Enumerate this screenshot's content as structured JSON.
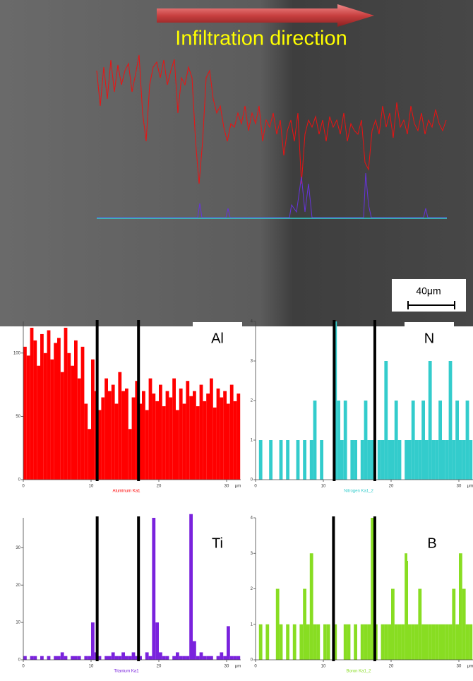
{
  "image": {
    "title": "Infiltration direction",
    "scale_bar": "40μm"
  },
  "chart_data": [
    {
      "type": "bar",
      "label": "Al",
      "x_label": "μm",
      "series": [
        {
          "name": "Aluminum Ka1",
          "color": "#ff0000",
          "values": [
            105,
            98,
            120,
            110,
            90,
            115,
            100,
            118,
            95,
            108,
            112,
            85,
            120,
            100,
            90,
            110,
            80,
            105,
            60,
            40,
            95,
            70,
            55,
            65,
            80,
            70,
            75,
            60,
            85,
            70,
            72,
            40,
            65,
            78,
            60,
            70,
            55,
            80,
            68,
            62,
            75,
            58,
            70,
            65,
            80,
            55,
            72,
            60,
            78,
            66,
            70,
            58,
            75,
            62,
            68,
            80,
            57,
            72,
            65,
            70,
            60,
            75,
            62,
            68
          ]
        }
      ],
      "x": [
        0,
        0.5,
        1,
        1.5,
        2,
        2.5,
        3,
        3.5,
        4,
        4.5,
        5,
        5.5,
        6,
        6.5,
        7,
        7.5,
        8,
        8.5,
        9,
        9.5,
        10,
        10.5,
        11,
        11.5,
        12,
        12.5,
        13,
        13.5,
        14,
        14.5,
        15,
        15.5,
        16,
        16.5,
        17,
        17.5,
        18,
        18.5,
        19,
        19.5,
        20,
        20.5,
        21,
        21.5,
        22,
        22.5,
        23,
        23.5,
        24,
        24.5,
        25,
        25.5,
        26,
        26.5,
        27,
        27.5,
        28,
        28.5,
        29,
        29.5,
        30,
        30.5,
        31,
        31.5
      ],
      "xlim": [
        0,
        32.5
      ],
      "xticks": [
        0,
        10,
        20,
        30
      ],
      "ylim": [
        0,
        125
      ],
      "yticks": [
        0,
        50,
        100
      ],
      "markers": [
        10.9,
        17
      ]
    },
    {
      "type": "bar",
      "label": "N",
      "x_label": "μm",
      "series": [
        {
          "name": "Nitrogen Ka1_2",
          "color": "#33cccc",
          "values": [
            0,
            1,
            0,
            0,
            1,
            0,
            0,
            1,
            0,
            1,
            0,
            0,
            1,
            0,
            1,
            0,
            1,
            2,
            0,
            1,
            0,
            0,
            0,
            4,
            2,
            1,
            2,
            0,
            1,
            1,
            0,
            1,
            2,
            1,
            1,
            0,
            1,
            1,
            3,
            1,
            1,
            2,
            1,
            0,
            1,
            1,
            2,
            1,
            1,
            2,
            1,
            3,
            1,
            1,
            2,
            1,
            1,
            3,
            1,
            2,
            1,
            1,
            2,
            1
          ]
        }
      ],
      "x": [
        0,
        0.5,
        1,
        1.5,
        2,
        2.5,
        3,
        3.5,
        4,
        4.5,
        5,
        5.5,
        6,
        6.5,
        7,
        7.5,
        8,
        8.5,
        9,
        9.5,
        10,
        10.5,
        11,
        11.5,
        12,
        12.5,
        13,
        13.5,
        14,
        14.5,
        15,
        15.5,
        16,
        16.5,
        17,
        17.5,
        18,
        18.5,
        19,
        19.5,
        20,
        20.5,
        21,
        21.5,
        22,
        22.5,
        23,
        23.5,
        24,
        24.5,
        25,
        25.5,
        26,
        26.5,
        27,
        27.5,
        28,
        28.5,
        29,
        29.5,
        30,
        30.5,
        31,
        31.5
      ],
      "xlim": [
        0,
        32.5
      ],
      "xticks": [
        0,
        10,
        20,
        30
      ],
      "ylim": [
        0,
        4
      ],
      "yticks": [
        0,
        1,
        2,
        3,
        4
      ],
      "markers": [
        11.6,
        17.6
      ]
    },
    {
      "type": "bar",
      "label": "Ti",
      "x_label": "μm",
      "series": [
        {
          "name": "Titanium Ka1",
          "color": "#7a22dd",
          "values": [
            1,
            0,
            1,
            1,
            0,
            1,
            0,
            1,
            0,
            1,
            1,
            2,
            1,
            0,
            1,
            1,
            1,
            0,
            1,
            1,
            10,
            2,
            1,
            0,
            1,
            1,
            2,
            1,
            1,
            2,
            1,
            1,
            2,
            1,
            1,
            0,
            2,
            1,
            38,
            10,
            2,
            1,
            1,
            0,
            1,
            2,
            1,
            1,
            1,
            39,
            5,
            1,
            2,
            1,
            1,
            1,
            0,
            1,
            2,
            1,
            9,
            1,
            1,
            1
          ]
        }
      ],
      "x": [
        0,
        0.5,
        1,
        1.5,
        2,
        2.5,
        3,
        3.5,
        4,
        4.5,
        5,
        5.5,
        6,
        6.5,
        7,
        7.5,
        8,
        8.5,
        9,
        9.5,
        10,
        10.5,
        11,
        11.5,
        12,
        12.5,
        13,
        13.5,
        14,
        14.5,
        15,
        15.5,
        16,
        16.5,
        17,
        17.5,
        18,
        18.5,
        19,
        19.5,
        20,
        20.5,
        21,
        21.5,
        22,
        22.5,
        23,
        23.5,
        24,
        24.5,
        25,
        25.5,
        26,
        26.5,
        27,
        27.5,
        28,
        28.5,
        29,
        29.5,
        30,
        30.5,
        31,
        31.5
      ],
      "xlim": [
        0,
        32.5
      ],
      "xticks": [
        0,
        10,
        20,
        30
      ],
      "ylim": [
        0,
        38
      ],
      "yticks": [
        0,
        10,
        20,
        30
      ],
      "markers": [
        10.9,
        17
      ]
    },
    {
      "type": "bar",
      "label": "B",
      "x_label": "μm",
      "series": [
        {
          "name": "Boron Ka1_2",
          "color": "#88dd22",
          "values": [
            0,
            1,
            0,
            1,
            0,
            0,
            2,
            1,
            0,
            1,
            0,
            1,
            0,
            1,
            2,
            1,
            3,
            1,
            1,
            0,
            1,
            1,
            0,
            1,
            0,
            0,
            1,
            1,
            0,
            1,
            0,
            1,
            1,
            1,
            4,
            1,
            0,
            1,
            1,
            1,
            2,
            1,
            1,
            1,
            3,
            1,
            1,
            1,
            2,
            1,
            1,
            1,
            1,
            1,
            1,
            1,
            1,
            1,
            2,
            1,
            3,
            2,
            1,
            1
          ]
        }
      ],
      "x": [
        0,
        0.5,
        1,
        1.5,
        2,
        2.5,
        3,
        3.5,
        4,
        4.5,
        5,
        5.5,
        6,
        6.5,
        7,
        7.5,
        8,
        8.5,
        9,
        9.5,
        10,
        10.5,
        11,
        11.5,
        12,
        12.5,
        13,
        13.5,
        14,
        14.5,
        15,
        15.5,
        16,
        16.5,
        17,
        17.5,
        18,
        18.5,
        19,
        19.5,
        20,
        20.5,
        21,
        21.5,
        22,
        22.5,
        23,
        23.5,
        24,
        24.5,
        25,
        25.5,
        26,
        26.5,
        27,
        27.5,
        28,
        28.5,
        29,
        29.5,
        30,
        30.5,
        31,
        31.5
      ],
      "xlim": [
        0,
        32.5
      ],
      "xticks": [
        0,
        10,
        20,
        30
      ],
      "ylim": [
        0,
        4
      ],
      "yticks": [
        0,
        1,
        2,
        3,
        4
      ],
      "markers": [
        11.5,
        17.6
      ]
    }
  ]
}
